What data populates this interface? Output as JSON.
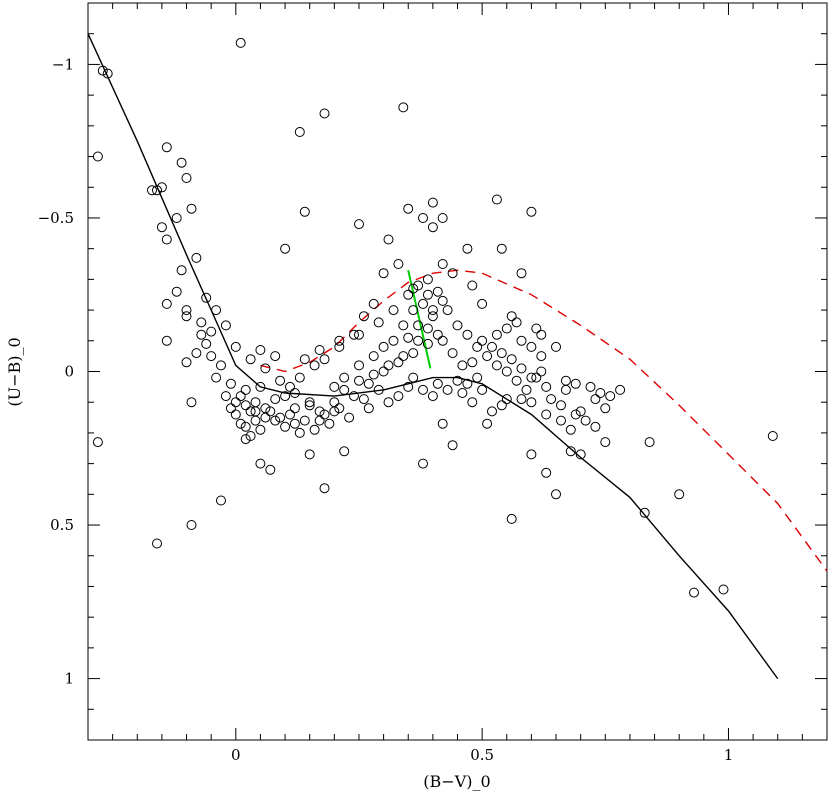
{
  "chart_data": {
    "type": "scatter",
    "title": "",
    "xlabel": "(B−V)_0",
    "ylabel": "(U−B)_0",
    "xlim": [
      -0.3,
      1.2
    ],
    "ylim": [
      1.2,
      -1.2
    ],
    "y_inverted": true,
    "grid": false,
    "x_ticks": [
      0,
      0.5,
      1
    ],
    "x_tick_labels": [
      "0",
      "0.5",
      "1"
    ],
    "y_ticks": [
      -1,
      -0.5,
      0,
      0.5,
      1
    ],
    "y_tick_labels": [
      "−1",
      "−0.5",
      "0",
      "0.5",
      "1"
    ],
    "colors": {
      "points": "#000000",
      "main_sequence": "#000000",
      "reddened_curve": "#dd0000",
      "reddening_vector": "#00cc00"
    },
    "series": [
      {
        "kind": "points",
        "marker": "open-circle",
        "points": [
          [
            -0.27,
            -0.98
          ],
          [
            -0.26,
            -0.97
          ],
          [
            -0.28,
            -0.7
          ],
          [
            -0.28,
            0.23
          ],
          [
            -0.17,
            -0.59
          ],
          [
            -0.16,
            -0.59
          ],
          [
            -0.15,
            -0.6
          ],
          [
            -0.15,
            -0.47
          ],
          [
            -0.14,
            -0.43
          ],
          [
            -0.14,
            -0.73
          ],
          [
            -0.12,
            -0.5
          ],
          [
            -0.11,
            -0.68
          ],
          [
            -0.1,
            -0.63
          ],
          [
            -0.09,
            -0.53
          ],
          [
            -0.08,
            -0.37
          ],
          [
            -0.11,
            -0.33
          ],
          [
            -0.12,
            -0.26
          ],
          [
            -0.14,
            -0.22
          ],
          [
            -0.1,
            -0.2
          ],
          [
            -0.1,
            -0.18
          ],
          [
            -0.14,
            -0.1
          ],
          [
            -0.1,
            -0.03
          ],
          [
            -0.07,
            -0.16
          ],
          [
            -0.05,
            -0.13
          ],
          [
            -0.06,
            -0.24
          ],
          [
            -0.09,
            0.1
          ],
          [
            -0.09,
            0.5
          ],
          [
            -0.16,
            0.56
          ],
          [
            -0.03,
            0.42
          ],
          [
            0.01,
            -1.07
          ],
          [
            0.1,
            -0.4
          ],
          [
            0.13,
            -0.78
          ],
          [
            0.14,
            -0.52
          ],
          [
            0.18,
            -0.84
          ],
          [
            0.25,
            -0.48
          ],
          [
            0.31,
            -0.43
          ],
          [
            0.34,
            -0.86
          ],
          [
            0.35,
            -0.53
          ],
          [
            0.38,
            -0.5
          ],
          [
            0.4,
            -0.47
          ],
          [
            0.42,
            -0.5
          ],
          [
            0.4,
            -0.55
          ],
          [
            0.47,
            -0.4
          ],
          [
            0.53,
            -0.56
          ],
          [
            0.54,
            -0.4
          ],
          [
            0.58,
            -0.32
          ],
          [
            0.6,
            -0.52
          ],
          [
            0.61,
            -0.14
          ],
          [
            0.62,
            -0.12
          ],
          [
            0.65,
            -0.08
          ],
          [
            0.67,
            0.03
          ],
          [
            0.69,
            0.04
          ],
          [
            0.7,
            0.13
          ],
          [
            0.72,
            0.05
          ],
          [
            0.73,
            0.09
          ],
          [
            0.74,
            0.07
          ],
          [
            0.75,
            0.12
          ],
          [
            0.76,
            0.08
          ],
          [
            0.78,
            0.06
          ],
          [
            0.84,
            0.23
          ],
          [
            0.9,
            0.4
          ],
          [
            0.83,
            0.46
          ],
          [
            0.93,
            0.72
          ],
          [
            0.99,
            0.71
          ],
          [
            1.09,
            0.21
          ],
          [
            0.75,
            0.23
          ],
          [
            0.7,
            0.27
          ],
          [
            0.68,
            0.26
          ],
          [
            0.65,
            0.4
          ],
          [
            0.63,
            0.33
          ],
          [
            0.6,
            0.27
          ],
          [
            0.56,
            0.48
          ],
          [
            0.51,
            0.17
          ],
          [
            0.42,
            0.17
          ],
          [
            0.44,
            0.24
          ],
          [
            0.38,
            0.3
          ],
          [
            0.22,
            0.26
          ],
          [
            0.18,
            0.38
          ],
          [
            0.15,
            0.27
          ],
          [
            0.07,
            0.32
          ],
          [
            0.05,
            0.3
          ],
          [
            0.02,
            0.22
          ],
          [
            0.03,
            0.13
          ],
          [
            0.0,
            0.1
          ],
          [
            0.05,
            0.05
          ],
          [
            0.1,
            0.08
          ],
          [
            0.12,
            0.12
          ],
          [
            0.15,
            0.1
          ],
          [
            0.2,
            0.05
          ],
          [
            0.22,
            0.02
          ],
          [
            0.25,
            -0.02
          ],
          [
            0.28,
            -0.05
          ],
          [
            0.3,
            -0.08
          ],
          [
            0.32,
            -0.1
          ],
          [
            0.34,
            -0.15
          ],
          [
            0.36,
            -0.2
          ],
          [
            0.38,
            -0.22
          ],
          [
            0.4,
            -0.18
          ],
          [
            0.35,
            -0.25
          ],
          [
            0.37,
            -0.28
          ],
          [
            0.39,
            -0.3
          ],
          [
            0.41,
            -0.26
          ],
          [
            0.43,
            -0.2
          ],
          [
            0.45,
            -0.15
          ],
          [
            0.47,
            -0.12
          ],
          [
            0.49,
            -0.08
          ],
          [
            0.51,
            -0.05
          ],
          [
            0.53,
            -0.02
          ],
          [
            0.55,
            0.0
          ],
          [
            0.57,
            0.03
          ],
          [
            0.59,
            0.06
          ],
          [
            0.48,
            0.1
          ],
          [
            0.46,
            0.07
          ],
          [
            0.52,
            0.13
          ],
          [
            0.55,
            0.09
          ],
          [
            0.6,
            0.02
          ],
          [
            0.62,
            -0.05
          ],
          [
            0.58,
            -0.1
          ],
          [
            0.56,
            -0.18
          ],
          [
            0.5,
            -0.22
          ],
          [
            0.48,
            -0.28
          ],
          [
            0.44,
            -0.32
          ],
          [
            0.42,
            -0.35
          ],
          [
            0.33,
            -0.35
          ],
          [
            0.3,
            -0.32
          ],
          [
            0.28,
            -0.22
          ],
          [
            0.26,
            -0.18
          ],
          [
            0.24,
            -0.12
          ],
          [
            0.21,
            -0.08
          ],
          [
            0.18,
            -0.04
          ],
          [
            0.16,
            -0.02
          ],
          [
            0.13,
            0.02
          ],
          [
            0.11,
            0.05
          ],
          [
            0.08,
            0.09
          ],
          [
            0.06,
            0.12
          ],
          [
            0.04,
            0.16
          ],
          [
            0.02,
            0.18
          ],
          [
            0.0,
            0.14
          ],
          [
            -0.02,
            0.08
          ],
          [
            -0.04,
            0.02
          ],
          [
            -0.05,
            -0.05
          ],
          [
            -0.06,
            -0.09
          ],
          [
            -0.07,
            -0.12
          ],
          [
            -0.08,
            -0.06
          ],
          [
            -0.04,
            -0.2
          ],
          [
            -0.02,
            -0.15
          ],
          [
            0.0,
            -0.08
          ],
          [
            0.03,
            -0.04
          ],
          [
            0.06,
            -0.01
          ],
          [
            0.09,
            0.03
          ],
          [
            0.12,
            0.07
          ],
          [
            0.15,
            0.11
          ],
          [
            0.18,
            0.14
          ],
          [
            0.21,
            0.12
          ],
          [
            0.24,
            0.08
          ],
          [
            0.27,
            0.04
          ],
          [
            0.3,
            0.0
          ],
          [
            0.33,
            -0.03
          ],
          [
            0.36,
            -0.06
          ],
          [
            0.39,
            -0.09
          ],
          [
            0.41,
            -0.12
          ],
          [
            0.36,
            0.02
          ],
          [
            0.38,
            0.06
          ],
          [
            0.4,
            0.08
          ],
          [
            0.33,
            0.08
          ],
          [
            0.31,
            0.1
          ],
          [
            0.27,
            0.12
          ],
          [
            0.23,
            0.15
          ],
          [
            0.19,
            0.17
          ],
          [
            0.16,
            0.19
          ],
          [
            0.13,
            0.2
          ],
          [
            0.1,
            0.18
          ],
          [
            0.08,
            0.16
          ],
          [
            0.05,
            0.19
          ],
          [
            0.03,
            0.21
          ],
          [
            0.01,
            0.17
          ],
          [
            -0.01,
            0.12
          ],
          [
            0.02,
            0.06
          ],
          [
            0.04,
            0.1
          ],
          [
            0.07,
            0.13
          ],
          [
            0.09,
            0.15
          ],
          [
            0.11,
            0.14
          ],
          [
            0.14,
            0.16
          ],
          [
            0.17,
            0.13
          ],
          [
            0.2,
            0.1
          ],
          [
            0.22,
            0.06
          ],
          [
            0.25,
            0.03
          ],
          [
            0.28,
            0.01
          ],
          [
            0.31,
            -0.02
          ],
          [
            0.34,
            -0.05
          ],
          [
            0.37,
            -0.1
          ],
          [
            0.39,
            -0.14
          ],
          [
            0.42,
            -0.1
          ],
          [
            0.44,
            -0.06
          ],
          [
            0.46,
            -0.02
          ],
          [
            0.45,
            0.03
          ],
          [
            0.43,
            0.06
          ],
          [
            0.41,
            0.04
          ],
          [
            0.35,
            0.05
          ],
          [
            0.29,
            0.06
          ],
          [
            0.26,
            0.09
          ],
          [
            0.2,
            0.13
          ],
          [
            0.17,
            0.16
          ],
          [
            0.12,
            0.17
          ],
          [
            0.06,
            0.15
          ],
          [
            0.04,
            0.13
          ],
          [
            0.02,
            0.11
          ],
          [
            0.01,
            0.08
          ],
          [
            -0.01,
            0.04
          ],
          [
            -0.03,
            -0.02
          ],
          [
            0.05,
            -0.07
          ],
          [
            0.08,
            -0.05
          ],
          [
            0.14,
            -0.04
          ],
          [
            0.17,
            -0.07
          ],
          [
            0.21,
            -0.1
          ],
          [
            0.25,
            -0.12
          ],
          [
            0.29,
            -0.16
          ],
          [
            0.32,
            -0.2
          ],
          [
            0.35,
            -0.11
          ],
          [
            0.37,
            -0.15
          ],
          [
            0.4,
            -0.2
          ],
          [
            0.42,
            -0.23
          ],
          [
            0.39,
            -0.25
          ],
          [
            0.36,
            -0.27
          ],
          [
            0.5,
            -0.1
          ],
          [
            0.52,
            -0.08
          ],
          [
            0.54,
            -0.06
          ],
          [
            0.56,
            -0.04
          ],
          [
            0.58,
            -0.01
          ],
          [
            0.61,
            0.02
          ],
          [
            0.63,
            0.05
          ],
          [
            0.64,
            0.09
          ],
          [
            0.66,
            0.11
          ],
          [
            0.69,
            0.14
          ],
          [
            0.71,
            0.16
          ],
          [
            0.73,
            0.18
          ],
          [
            0.47,
            0.04
          ],
          [
            0.49,
            0.02
          ],
          [
            0.53,
            -0.12
          ],
          [
            0.55,
            -0.14
          ],
          [
            0.57,
            -0.16
          ],
          [
            0.6,
            -0.08
          ],
          [
            0.62,
            0.0
          ],
          [
            0.6,
            0.1
          ],
          [
            0.63,
            0.14
          ],
          [
            0.66,
            0.16
          ],
          [
            0.68,
            0.19
          ],
          [
            0.67,
            0.06
          ],
          [
            0.58,
            0.09
          ],
          [
            0.54,
            0.11
          ],
          [
            0.5,
            0.06
          ],
          [
            0.48,
            -0.03
          ]
        ]
      },
      {
        "name": "",
        "kind": "curve",
        "style": "solid",
        "points": [
          [
            -0.3,
            -1.1
          ],
          [
            -0.2,
            -0.75
          ],
          [
            -0.1,
            -0.38
          ],
          [
            -0.05,
            -0.2
          ],
          [
            0.0,
            -0.02
          ],
          [
            0.05,
            0.05
          ],
          [
            0.1,
            0.07
          ],
          [
            0.2,
            0.08
          ],
          [
            0.3,
            0.06
          ],
          [
            0.4,
            0.02
          ],
          [
            0.45,
            0.02
          ],
          [
            0.5,
            0.04
          ],
          [
            0.6,
            0.14
          ],
          [
            0.7,
            0.28
          ],
          [
            0.8,
            0.41
          ],
          [
            0.9,
            0.6
          ],
          [
            1.0,
            0.78
          ],
          [
            1.1,
            1.0
          ]
        ]
      },
      {
        "name": "",
        "kind": "curve",
        "style": "dashed",
        "points": [
          [
            0.05,
            -0.02
          ],
          [
            0.1,
            0.0
          ],
          [
            0.15,
            -0.03
          ],
          [
            0.2,
            -0.08
          ],
          [
            0.25,
            -0.16
          ],
          [
            0.3,
            -0.23
          ],
          [
            0.35,
            -0.29
          ],
          [
            0.4,
            -0.32
          ],
          [
            0.45,
            -0.33
          ],
          [
            0.5,
            -0.32
          ],
          [
            0.6,
            -0.25
          ],
          [
            0.7,
            -0.15
          ],
          [
            0.8,
            -0.04
          ],
          [
            0.9,
            0.11
          ],
          [
            1.0,
            0.27
          ],
          [
            1.1,
            0.43
          ],
          [
            1.2,
            0.65
          ]
        ]
      },
      {
        "name": "",
        "kind": "segment",
        "style": "solid",
        "points": [
          [
            0.35,
            -0.33
          ],
          [
            0.395,
            -0.01
          ]
        ]
      }
    ]
  }
}
